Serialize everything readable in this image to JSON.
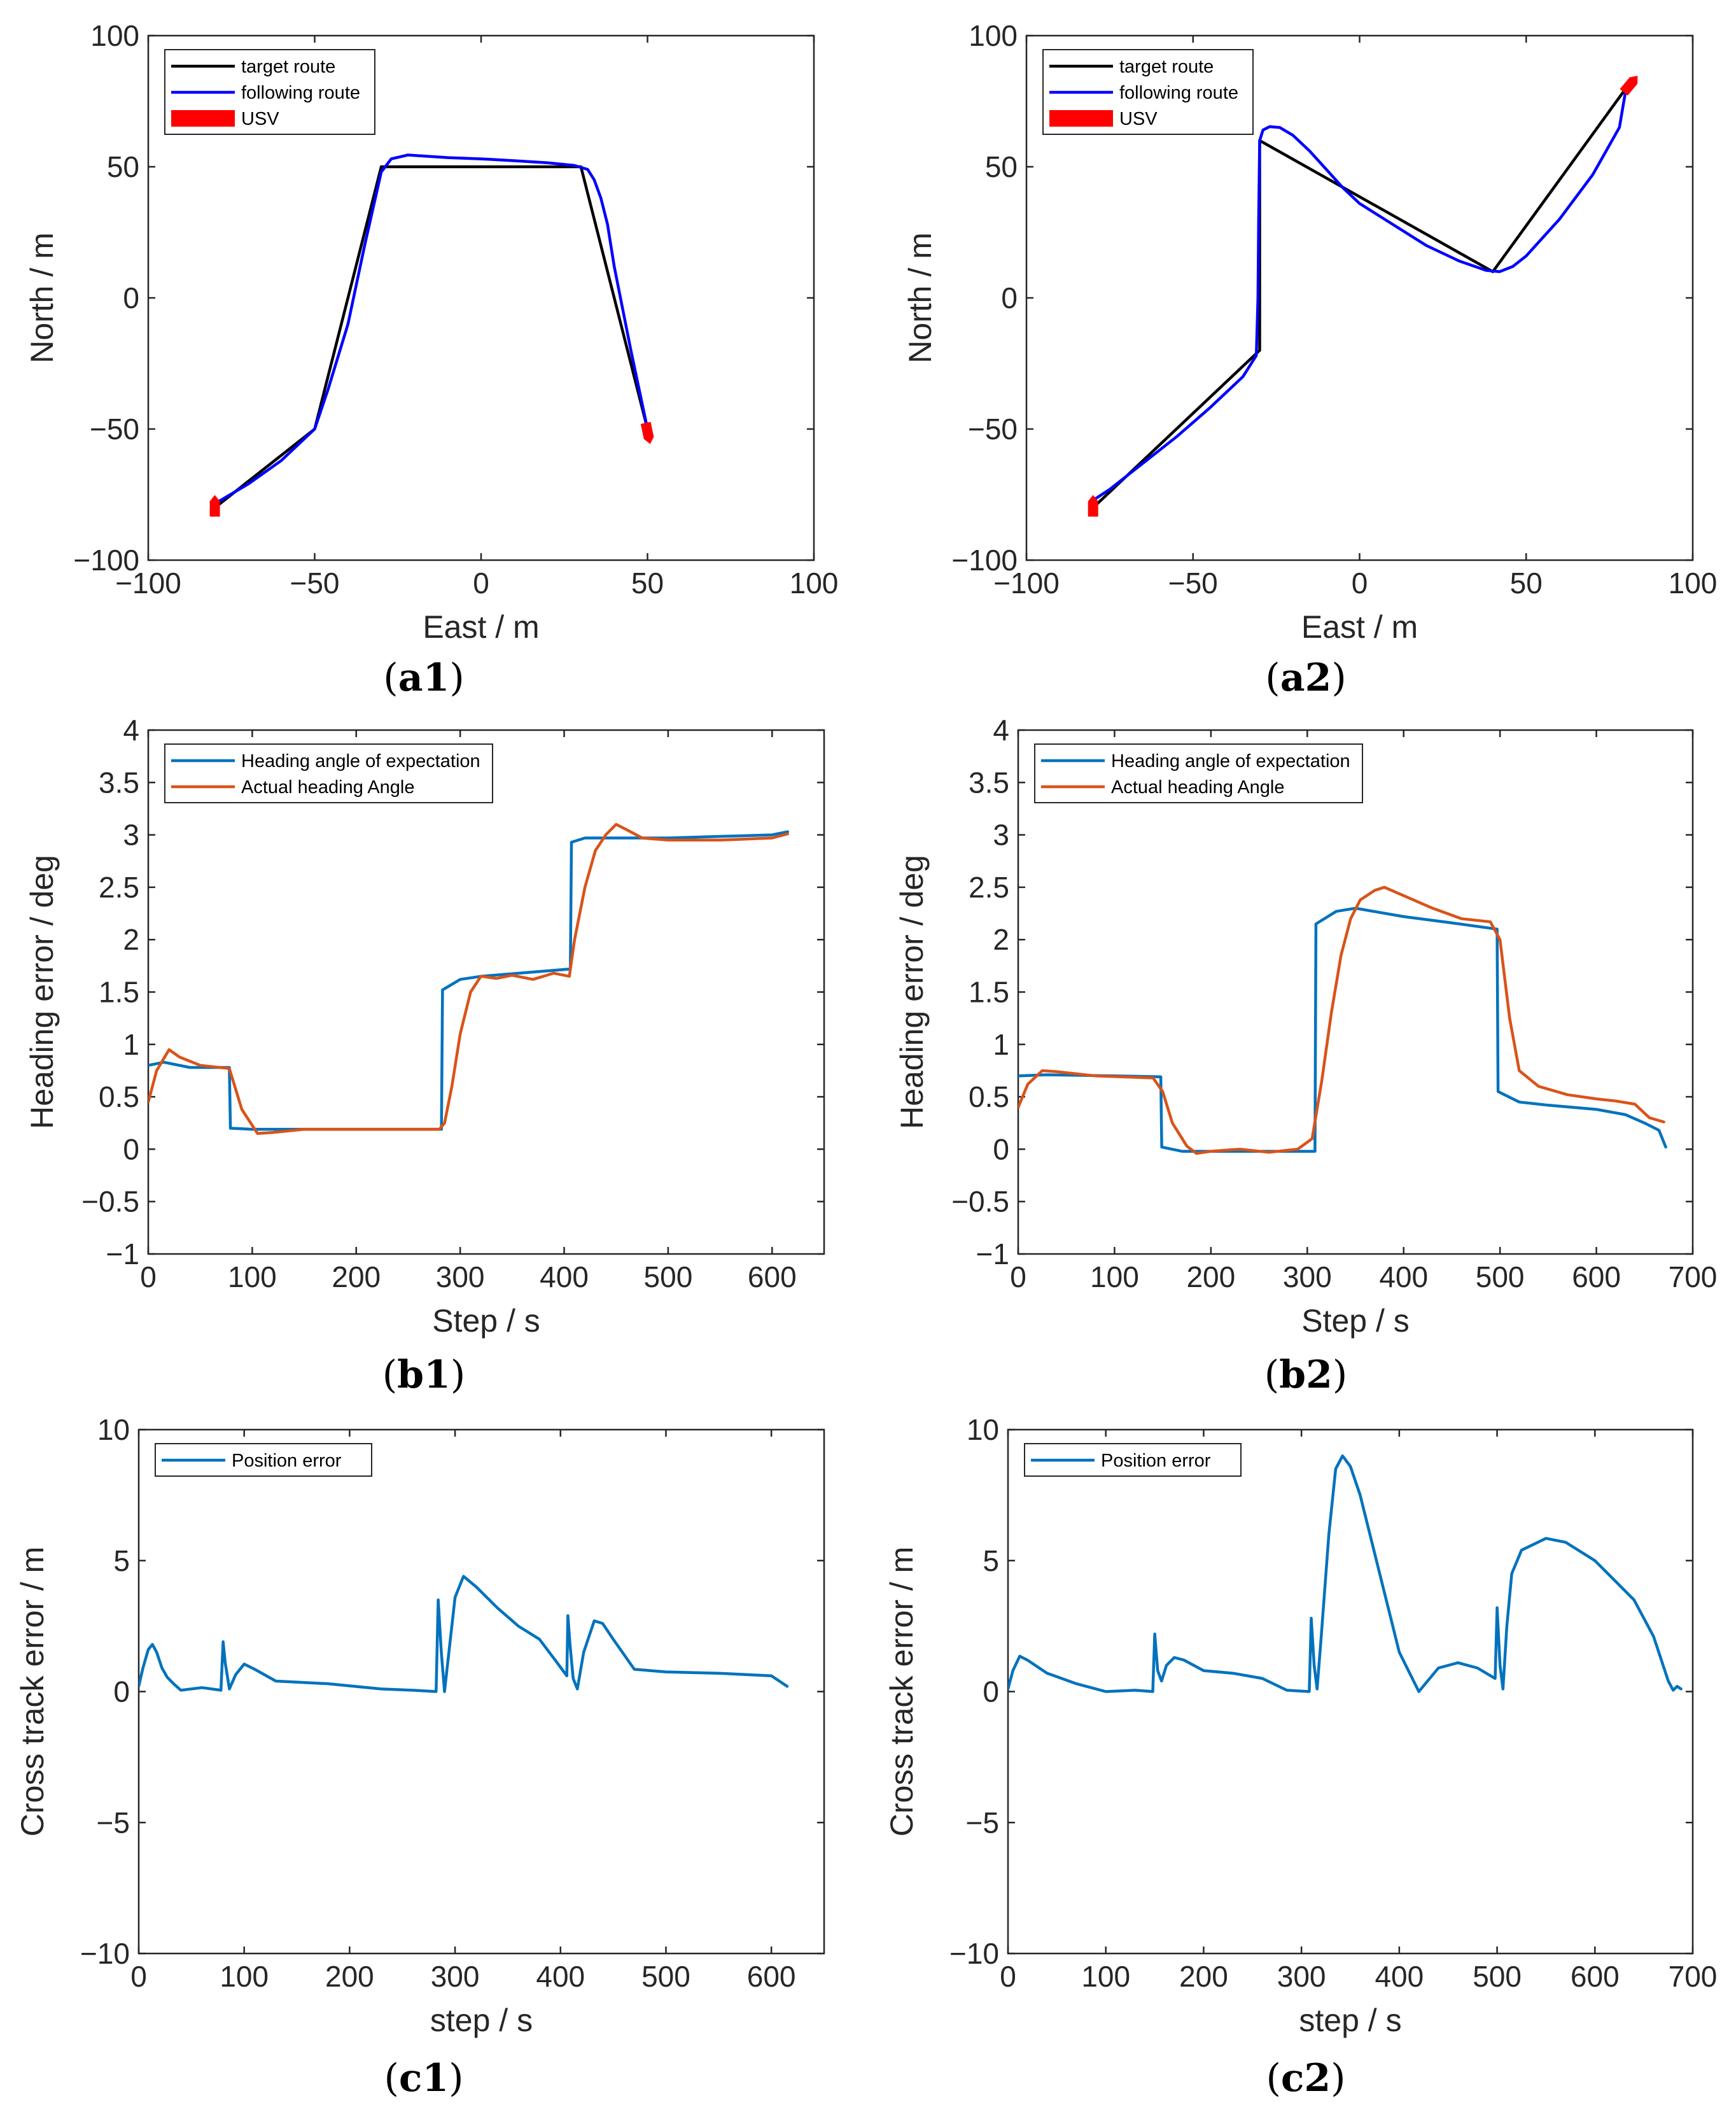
{
  "chart_data": [
    {
      "id": "a1",
      "type": "line",
      "panel_label": "(a1)",
      "xlabel": "East / m",
      "ylabel": "North / m",
      "xlim": [
        -100,
        100
      ],
      "ylim": [
        -100,
        100
      ],
      "xticks": [
        -100,
        -50,
        0,
        50,
        100
      ],
      "yticks": [
        -100,
        -50,
        0,
        50,
        100
      ],
      "xtick_labels": [
        "−100",
        "−50",
        "0",
        "50",
        "100"
      ],
      "ytick_labels": [
        "−100",
        "−50",
        "0",
        "50",
        "100"
      ],
      "grid": false,
      "legend": "top-left",
      "series": [
        {
          "name": "target route",
          "color": "#000000",
          "x": [
            -80,
            -50,
            -30,
            30,
            50
          ],
          "y": [
            -80,
            -50,
            50,
            50,
            -50
          ]
        },
        {
          "name": "following route",
          "color": "#0000ff",
          "x": [
            -81,
            -78,
            -70,
            -60,
            -50,
            -46,
            -40,
            -35,
            -30,
            -27,
            -22,
            -10,
            0,
            10,
            20,
            28,
            32,
            34,
            36,
            38,
            40,
            45,
            50
          ],
          "y": [
            -79,
            -77,
            -71,
            -62,
            -50,
            -35,
            -10,
            20,
            48,
            53,
            54.5,
            53.5,
            53,
            52.3,
            51.5,
            50.5,
            49,
            45,
            38,
            28,
            12,
            -20,
            -50
          ]
        },
        {
          "name": "USV",
          "color": "#ff0000",
          "markers": [
            {
              "x": -80,
              "y": -80,
              "heading": 0
            },
            {
              "x": 50,
              "y": -51,
              "heading": 168
            }
          ]
        }
      ]
    },
    {
      "id": "a2",
      "type": "line",
      "panel_label": "(a2)",
      "xlabel": "East / m",
      "ylabel": "North / m",
      "xlim": [
        -100,
        100
      ],
      "ylim": [
        -100,
        100
      ],
      "xticks": [
        -100,
        -50,
        0,
        50,
        100
      ],
      "yticks": [
        -100,
        -50,
        0,
        50,
        100
      ],
      "xtick_labels": [
        "−100",
        "−50",
        "0",
        "50",
        "100"
      ],
      "ytick_labels": [
        "−100",
        "−50",
        "0",
        "50",
        "100"
      ],
      "grid": false,
      "legend": "top-left",
      "series": [
        {
          "name": "target route",
          "color": "#000000",
          "x": [
            -80,
            -30,
            -30,
            40,
            80
          ],
          "y": [
            -80,
            -20,
            60,
            10,
            80
          ]
        },
        {
          "name": "following route",
          "color": "#0000ff",
          "x": [
            -81,
            -75,
            -65,
            -55,
            -45,
            -35,
            -31,
            -30.5,
            -30.3,
            -30,
            -29,
            -27,
            -24,
            -20,
            -15,
            -10,
            -5,
            0,
            10,
            20,
            30,
            38,
            42,
            46,
            50,
            60,
            70,
            78,
            80
          ],
          "y": [
            -78,
            -73,
            -63,
            -53,
            -42,
            -30,
            -22,
            0,
            30,
            60,
            64,
            65.3,
            65,
            62,
            56,
            49,
            42,
            36,
            28,
            20,
            14,
            10.5,
            10,
            12,
            16,
            30,
            47,
            65,
            80
          ]
        },
        {
          "name": "USV",
          "color": "#ff0000",
          "markers": [
            {
              "x": -80,
              "y": -80,
              "heading": 0
            },
            {
              "x": 81,
              "y": 81,
              "heading": 40
            }
          ]
        }
      ]
    },
    {
      "id": "b1",
      "type": "line",
      "panel_label": "(b1)",
      "xlabel": "Step / s",
      "ylabel": "Heading error / deg",
      "xlim": [
        0,
        650
      ],
      "ylim": [
        -1,
        4
      ],
      "xticks": [
        0,
        100,
        200,
        300,
        400,
        500,
        600
      ],
      "yticks": [
        -1,
        -0.5,
        0,
        0.5,
        1,
        1.5,
        2,
        2.5,
        3,
        3.5,
        4
      ],
      "xtick_labels": [
        "0",
        "100",
        "200",
        "300",
        "400",
        "500",
        "600"
      ],
      "ytick_labels": [
        "−1",
        "−0.5",
        "0",
        "0.5",
        "1",
        "1.5",
        "2",
        "2.5",
        "3",
        "3.5",
        "4"
      ],
      "grid": false,
      "legend": "top-left",
      "series": [
        {
          "name": "Heading angle of expectation",
          "color": "#0072bd",
          "x": [
            0,
            15,
            40,
            78,
            79,
            100,
            282,
            283,
            300,
            320,
            406,
            407,
            420,
            450,
            500,
            600,
            615
          ],
          "y": [
            0.8,
            0.83,
            0.78,
            0.78,
            0.2,
            0.19,
            0.19,
            1.52,
            1.62,
            1.65,
            1.72,
            2.93,
            2.97,
            2.97,
            2.97,
            3.0,
            3.03
          ]
        },
        {
          "name": "Actual heading Angle",
          "color": "#d95319",
          "x": [
            0,
            8,
            20,
            30,
            50,
            78,
            90,
            105,
            120,
            150,
            200,
            280,
            285,
            292,
            300,
            310,
            320,
            335,
            350,
            370,
            390,
            405,
            410,
            420,
            430,
            440,
            450,
            460,
            475,
            500,
            550,
            600,
            615
          ],
          "y": [
            0.45,
            0.75,
            0.95,
            0.88,
            0.8,
            0.77,
            0.38,
            0.15,
            0.16,
            0.19,
            0.19,
            0.19,
            0.25,
            0.6,
            1.1,
            1.5,
            1.65,
            1.63,
            1.66,
            1.62,
            1.68,
            1.65,
            2.0,
            2.5,
            2.85,
            3.0,
            3.1,
            3.05,
            2.97,
            2.95,
            2.95,
            2.97,
            3.01
          ]
        }
      ]
    },
    {
      "id": "b2",
      "type": "line",
      "panel_label": "(b2)",
      "xlabel": "Step / s",
      "ylabel": "Heading error / deg",
      "xlim": [
        0,
        700
      ],
      "ylim": [
        -1,
        4
      ],
      "xticks": [
        0,
        100,
        200,
        300,
        400,
        500,
        600,
        700
      ],
      "yticks": [
        -1,
        -0.5,
        0,
        0.5,
        1,
        1.5,
        2,
        2.5,
        3,
        3.5,
        4
      ],
      "xtick_labels": [
        "0",
        "100",
        "200",
        "300",
        "400",
        "500",
        "600",
        "700"
      ],
      "ytick_labels": [
        "−1",
        "−0.5",
        "0",
        "0.5",
        "1",
        "1.5",
        "2",
        "2.5",
        "3",
        "3.5",
        "4"
      ],
      "grid": false,
      "legend": "top-left",
      "series": [
        {
          "name": "Heading angle of expectation",
          "color": "#0072bd",
          "x": [
            0,
            30,
            100,
            148,
            149,
            170,
            250,
            308,
            309,
            330,
            350,
            400,
            450,
            497,
            498,
            520,
            550,
            600,
            630,
            650,
            665,
            672
          ],
          "y": [
            0.7,
            0.71,
            0.7,
            0.69,
            0.02,
            -0.02,
            -0.02,
            -0.02,
            2.15,
            2.27,
            2.3,
            2.22,
            2.16,
            2.1,
            0.55,
            0.45,
            0.42,
            0.38,
            0.33,
            0.25,
            0.18,
            0.02
          ]
        },
        {
          "name": "Actual heading Angle",
          "color": "#d95319",
          "x": [
            0,
            10,
            25,
            40,
            80,
            140,
            150,
            160,
            175,
            185,
            200,
            230,
            260,
            290,
            305,
            315,
            325,
            335,
            345,
            355,
            370,
            380,
            400,
            430,
            460,
            490,
            500,
            510,
            520,
            540,
            570,
            600,
            620,
            640,
            655,
            670
          ],
          "y": [
            0.4,
            0.62,
            0.75,
            0.74,
            0.7,
            0.68,
            0.55,
            0.25,
            0.03,
            -0.04,
            -0.02,
            0.0,
            -0.03,
            0.0,
            0.1,
            0.65,
            1.3,
            1.85,
            2.2,
            2.38,
            2.47,
            2.5,
            2.42,
            2.3,
            2.2,
            2.17,
            2.0,
            1.25,
            0.75,
            0.6,
            0.52,
            0.48,
            0.46,
            0.43,
            0.3,
            0.26
          ]
        }
      ]
    },
    {
      "id": "c1",
      "type": "line",
      "panel_label": "(c1)",
      "xlabel": "step / s",
      "ylabel": "Cross track error / m",
      "xlim": [
        0,
        650
      ],
      "ylim": [
        -10,
        10
      ],
      "xticks": [
        0,
        100,
        200,
        300,
        400,
        500,
        600
      ],
      "yticks": [
        -10,
        -5,
        0,
        5,
        10
      ],
      "xtick_labels": [
        "0",
        "100",
        "200",
        "300",
        "400",
        "500",
        "600"
      ],
      "ytick_labels": [
        "−10",
        "−5",
        "0",
        "5",
        "10"
      ],
      "grid": false,
      "legend": "top-left",
      "series": [
        {
          "name": "Position error",
          "color": "#0072bd",
          "x": [
            0,
            4,
            9,
            13,
            17,
            22,
            27,
            33,
            40,
            60,
            78,
            80,
            82,
            86,
            92,
            100,
            110,
            130,
            180,
            230,
            260,
            282,
            284,
            287,
            290,
            295,
            300,
            308,
            320,
            340,
            360,
            380,
            395,
            406,
            407,
            409,
            412,
            416,
            422,
            432,
            440,
            450,
            470,
            500,
            550,
            600,
            615
          ],
          "y": [
            0.2,
            0.9,
            1.6,
            1.8,
            1.5,
            0.9,
            0.55,
            0.3,
            0.05,
            0.15,
            0.05,
            1.9,
            1.1,
            0.1,
            0.65,
            1.05,
            0.85,
            0.4,
            0.3,
            0.1,
            0.05,
            0.0,
            3.5,
            1.5,
            0.0,
            1.8,
            3.6,
            4.4,
            4.0,
            3.2,
            2.5,
            2.0,
            1.2,
            0.6,
            2.9,
            1.8,
            0.5,
            0.1,
            1.5,
            2.7,
            2.6,
            2.0,
            0.85,
            0.75,
            0.7,
            0.6,
            0.2
          ]
        }
      ]
    },
    {
      "id": "c2",
      "type": "line",
      "panel_label": "(c2)",
      "xlabel": "step / s",
      "ylabel": "Cross track error / m",
      "xlim": [
        0,
        700
      ],
      "ylim": [
        -10,
        10
      ],
      "xticks": [
        0,
        100,
        200,
        300,
        400,
        500,
        600,
        700
      ],
      "yticks": [
        -10,
        -5,
        0,
        5,
        10
      ],
      "xtick_labels": [
        "0",
        "100",
        "200",
        "300",
        "400",
        "500",
        "600",
        "700"
      ],
      "ytick_labels": [
        "−10",
        "−5",
        "0",
        "5",
        "10"
      ],
      "grid": false,
      "legend": "top-left",
      "series": [
        {
          "name": "Position error",
          "color": "#0072bd",
          "x": [
            0,
            5,
            12,
            20,
            40,
            70,
            100,
            130,
            148,
            150,
            153,
            157,
            162,
            170,
            180,
            200,
            230,
            260,
            285,
            308,
            310,
            313,
            316,
            320,
            328,
            335,
            342,
            350,
            360,
            380,
            400,
            420,
            440,
            460,
            480,
            498,
            500,
            503,
            506,
            510,
            515,
            525,
            550,
            570,
            600,
            640,
            660,
            675,
            680,
            684,
            688
          ],
          "y": [
            0.1,
            0.8,
            1.35,
            1.2,
            0.7,
            0.3,
            0.0,
            0.05,
            0.0,
            2.2,
            0.8,
            0.4,
            1.0,
            1.3,
            1.2,
            0.8,
            0.7,
            0.5,
            0.05,
            0.0,
            2.8,
            1.0,
            0.1,
            2.0,
            6.0,
            8.5,
            9.0,
            8.6,
            7.5,
            4.5,
            1.5,
            0.0,
            0.9,
            1.1,
            0.9,
            0.5,
            3.2,
            1.0,
            0.1,
            2.5,
            4.5,
            5.4,
            5.85,
            5.7,
            5.0,
            3.5,
            2.1,
            0.4,
            0.05,
            0.2,
            0.1
          ]
        }
      ]
    }
  ]
}
